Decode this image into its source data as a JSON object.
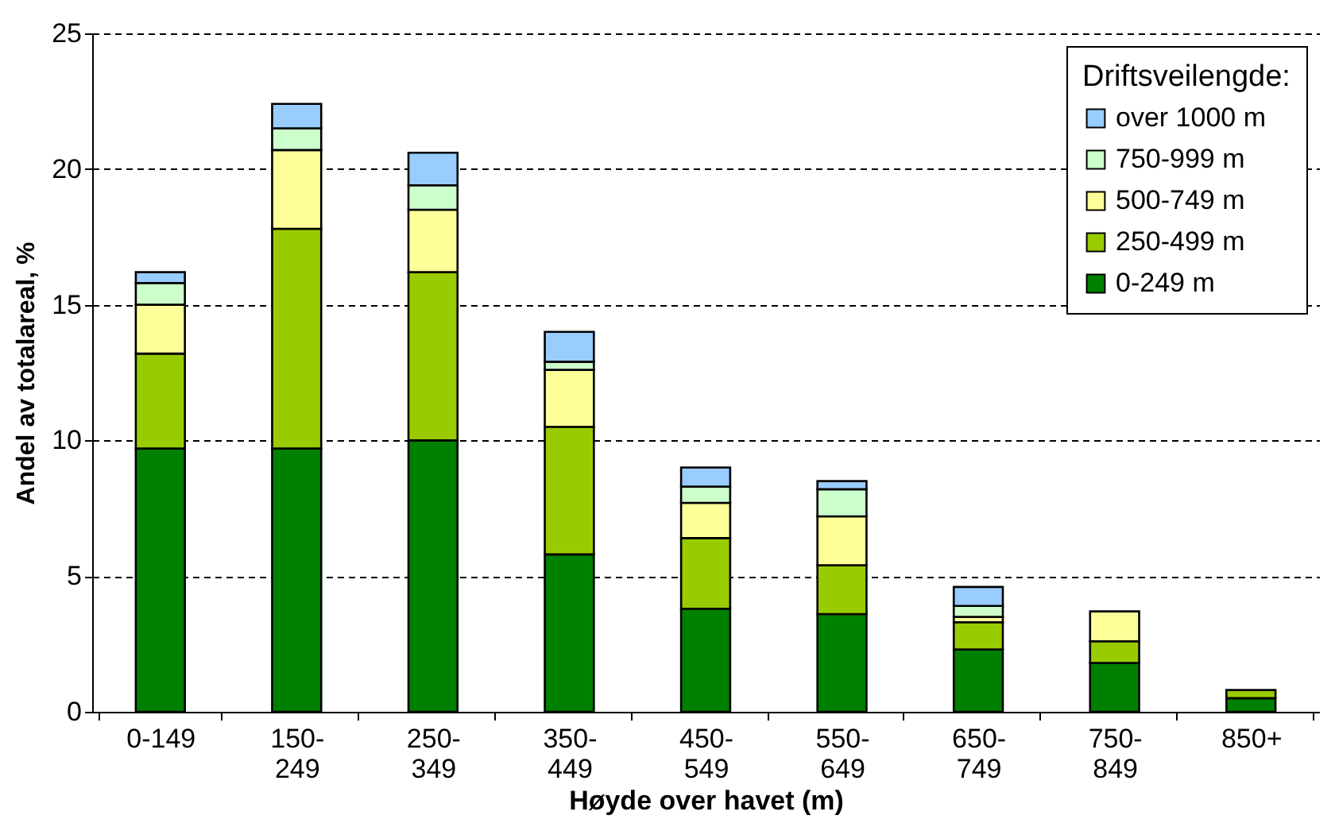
{
  "chart_data": {
    "type": "bar",
    "stacked": true,
    "xlabel": "Høyde over havet (m)",
    "ylabel": "Andel av totalareal,  %",
    "legend_title": "Driftsveilengde:",
    "legend": "top right",
    "grid": "y",
    "categories": [
      "0-149",
      "150-\n249",
      "250-\n349",
      "350-\n449",
      "450-\n549",
      "550-\n649",
      "650-\n749",
      "750-\n849",
      "850+"
    ],
    "ylim": [
      0,
      25
    ],
    "yticks": [
      0,
      5,
      10,
      15,
      20,
      25
    ],
    "series": [
      {
        "name": "0-249 m",
        "color": "#008000",
        "values": [
          9.7,
          9.7,
          10.0,
          5.8,
          3.8,
          3.6,
          2.3,
          1.8,
          0.5
        ]
      },
      {
        "name": "250-499 m",
        "color": "#99cc00",
        "values": [
          3.5,
          8.1,
          6.2,
          4.7,
          2.6,
          1.8,
          1.0,
          0.8,
          0.3
        ]
      },
      {
        "name": "500-749 m",
        "color": "#ffff99",
        "values": [
          1.8,
          2.9,
          2.3,
          2.1,
          1.3,
          1.8,
          0.2,
          1.1,
          null
        ]
      },
      {
        "name": "750-999 m",
        "color": "#ccffcc",
        "values": [
          0.8,
          0.8,
          0.9,
          0.3,
          0.6,
          1.0,
          0.4,
          null,
          null
        ]
      },
      {
        "name": "over 1000 m",
        "color": "#99ccff",
        "values": [
          0.4,
          0.9,
          1.2,
          1.1,
          0.7,
          0.3,
          0.7,
          null,
          null
        ]
      }
    ]
  }
}
